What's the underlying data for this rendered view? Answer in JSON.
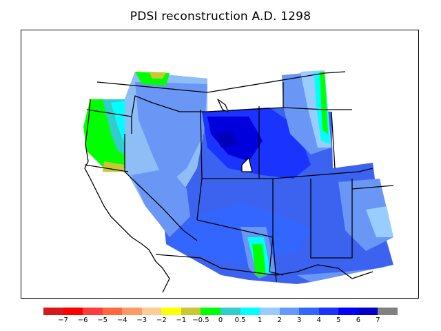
{
  "title": "PDSI reconstruction A.D. 1298",
  "legend": {
    "colors": [
      "#d7191c",
      "#ff0000",
      "#ff3b3b",
      "#ff6a3c",
      "#ff9966",
      "#ffcc99",
      "#ffff00",
      "#c8c832",
      "#00ff00",
      "#33cccc",
      "#00ffff",
      "#99ccff",
      "#6699ff",
      "#3366ff",
      "#1a33ff",
      "#0000ff",
      "#0000cc",
      "#808080"
    ],
    "labels": [
      "−7",
      "−6",
      "−5",
      "−4",
      "−3",
      "−2",
      "−1",
      "−0.5",
      "0",
      "0.5",
      "1",
      "2",
      "3",
      "4",
      "5",
      "6",
      "7"
    ]
  },
  "map": {
    "background_color": "#3a5ff0",
    "dominant_value_label": "4",
    "dry_edge_color": "#00ff00",
    "wet_core_color": "#0000ff"
  }
}
